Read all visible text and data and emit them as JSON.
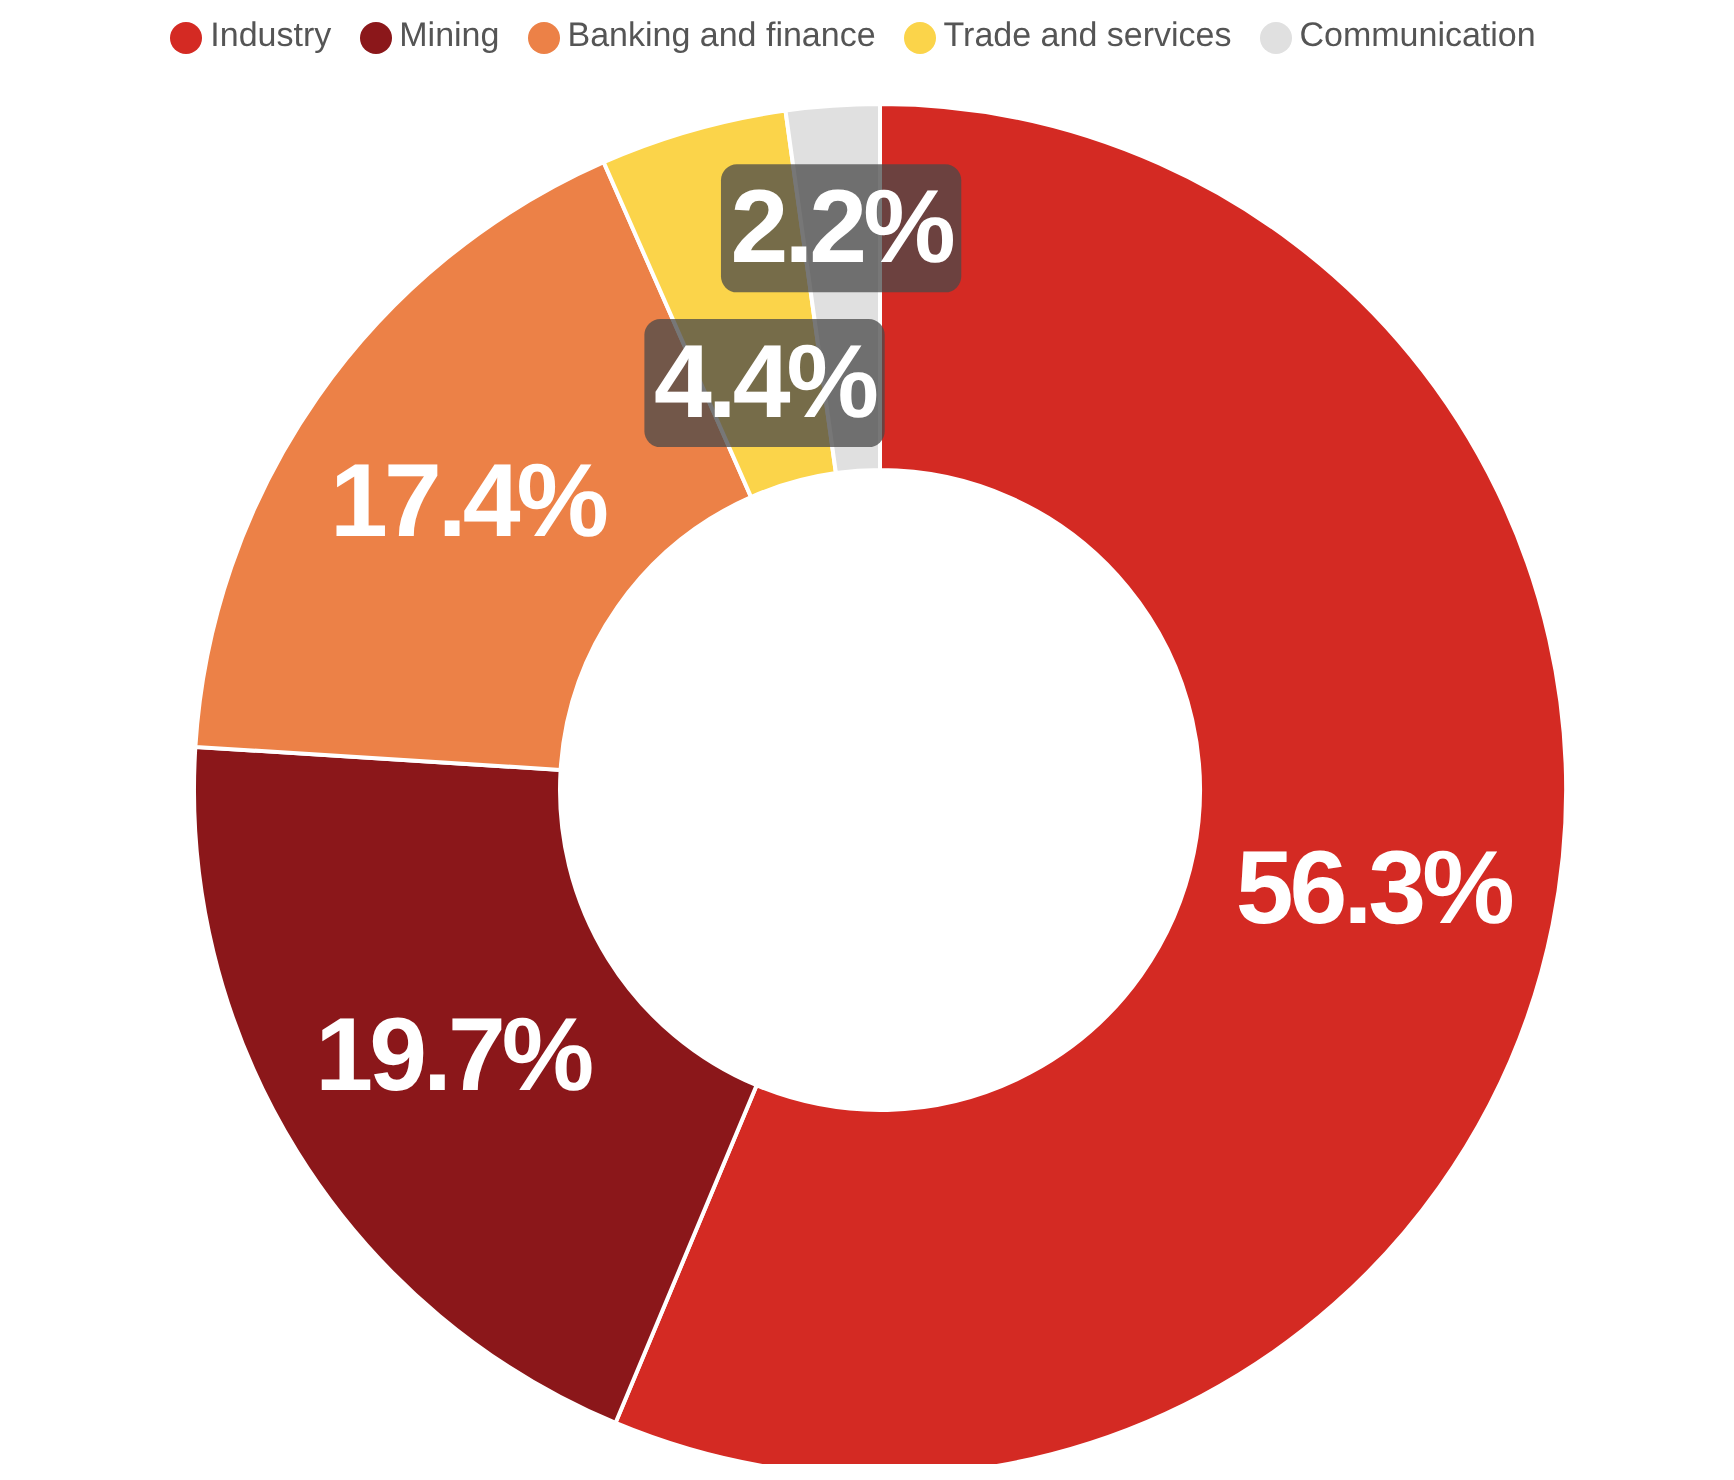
{
  "chart_data": {
    "type": "donut",
    "categories": [
      "Industry",
      "Mining",
      "Banking and finance",
      "Trade and services",
      "Communication"
    ],
    "values": [
      56.3,
      19.7,
      17.4,
      4.4,
      2.2
    ],
    "colors": [
      "#d42a23",
      "#8b171a",
      "#ec8147",
      "#fbd44a",
      "#e0e0e0"
    ],
    "value_labels": [
      "56.3%",
      "19.7%",
      "17.4%",
      "4.4%",
      "2.2%"
    ],
    "legend": "top"
  }
}
